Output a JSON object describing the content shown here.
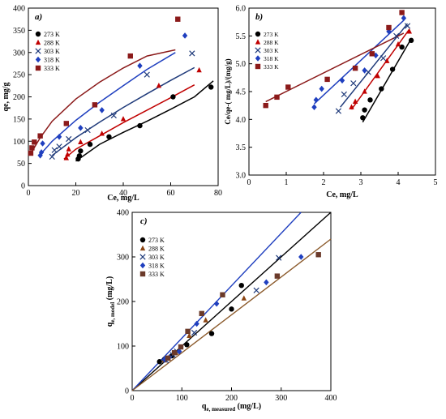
{
  "chart_data": [
    {
      "type": "scatter",
      "panel_label": "a)",
      "xlabel": "Ce, mg/L",
      "ylabel": "qe, mg/g",
      "xlim": [
        0,
        80
      ],
      "ylim": [
        0,
        400
      ],
      "xticks": [
        0,
        20,
        40,
        60,
        80
      ],
      "yticks": [
        0,
        50,
        100,
        150,
        200,
        250,
        300,
        350,
        400
      ],
      "grid": false,
      "legend_position": "top-left",
      "series": [
        {
          "name": "273 K",
          "color": "#000000",
          "marker": "circle",
          "points": [
            [
              21,
              60
            ],
            [
              21.5,
              67
            ],
            [
              22,
              78
            ],
            [
              26,
              93
            ],
            [
              34,
              110
            ],
            [
              47,
              135
            ],
            [
              61,
              200
            ],
            [
              77,
              222
            ]
          ],
          "fit": [
            [
              20,
              55
            ],
            [
              30,
              93
            ],
            [
              40,
              120
            ],
            [
              50,
              145
            ],
            [
              60,
              172
            ],
            [
              70,
              200
            ],
            [
              78,
              236
            ]
          ]
        },
        {
          "name": "288 K",
          "color": "#c00000",
          "marker": "triangle",
          "points": [
            [
              16,
              62
            ],
            [
              16.5,
              70
            ],
            [
              17,
              82
            ],
            [
              22,
              98
            ],
            [
              31,
              117
            ],
            [
              40,
              150
            ],
            [
              55,
              225
            ],
            [
              72,
              260
            ]
          ],
          "fit": [
            [
              15,
              60
            ],
            [
              20,
              82
            ],
            [
              30,
              112
            ],
            [
              40,
              142
            ],
            [
              50,
              170
            ],
            [
              60,
              198
            ],
            [
              70,
              227
            ]
          ]
        },
        {
          "name": "303 K",
          "color": "#1f3a7a",
          "marker": "x",
          "points": [
            [
              10,
              65
            ],
            [
              11,
              80
            ],
            [
              13,
              88
            ],
            [
              17,
              105
            ],
            [
              25,
              125
            ],
            [
              36,
              158
            ],
            [
              50,
              250
            ],
            [
              69,
              298
            ]
          ],
          "fit": [
            [
              10,
              68
            ],
            [
              20,
              108
            ],
            [
              30,
              143
            ],
            [
              40,
              176
            ],
            [
              50,
              207
            ],
            [
              60,
              237
            ],
            [
              70,
              266
            ]
          ]
        },
        {
          "name": "318 K",
          "color": "#1f3fbf",
          "marker": "diamond",
          "points": [
            [
              5,
              68
            ],
            [
              5.5,
              75
            ],
            [
              6,
              95
            ],
            [
              13,
              110
            ],
            [
              22,
              130
            ],
            [
              31,
              170
            ],
            [
              47,
              270
            ],
            [
              66,
              338
            ]
          ],
          "fit": [
            [
              5,
              70
            ],
            [
              10,
              100
            ],
            [
              20,
              147
            ],
            [
              30,
              188
            ],
            [
              40,
              225
            ],
            [
              50,
              262
            ],
            [
              62,
              300
            ]
          ]
        },
        {
          "name": "333 K",
          "color": "#8b1a1a",
          "marker": "square",
          "points": [
            [
              1,
              73
            ],
            [
              1.5,
              85
            ],
            [
              2.5,
              98
            ],
            [
              5,
              112
            ],
            [
              16,
              140
            ],
            [
              28,
              182
            ],
            [
              43,
              292
            ],
            [
              63,
              375
            ]
          ],
          "fit": [
            [
              1,
              72
            ],
            [
              5,
              108
            ],
            [
              10,
              145
            ],
            [
              20,
              195
            ],
            [
              30,
              233
            ],
            [
              40,
              265
            ],
            [
              50,
              292
            ],
            [
              62,
              306
            ]
          ]
        }
      ]
    },
    {
      "type": "scatter",
      "panel_label": "b)",
      "xlabel": "Ce, mg/L",
      "ylabel": "Ce/qe-( mg/L)/(mg/g)",
      "xlim": [
        0,
        5
      ],
      "ylim": [
        3.0,
        6.0
      ],
      "xticks": [
        0,
        1,
        2,
        3,
        4,
        5
      ],
      "yticks": [
        3.0,
        3.5,
        4.0,
        4.5,
        5.0,
        5.5,
        6.0
      ],
      "grid": false,
      "legend_position": "top-left",
      "series": [
        {
          "name": "273 K",
          "color": "#000000",
          "marker": "circle",
          "points": [
            [
              3.05,
              4.03
            ],
            [
              3.1,
              4.17
            ],
            [
              3.25,
              4.35
            ],
            [
              3.55,
              4.55
            ],
            [
              3.85,
              4.9
            ],
            [
              4.1,
              5.3
            ],
            [
              4.35,
              5.42
            ]
          ],
          "fit": [
            [
              3.05,
              3.95
            ],
            [
              4.35,
              5.45
            ]
          ]
        },
        {
          "name": "288 K",
          "color": "#c00000",
          "marker": "triangle",
          "points": [
            [
              2.75,
              4.22
            ],
            [
              2.85,
              4.32
            ],
            [
              3.1,
              4.5
            ],
            [
              3.45,
              4.78
            ],
            [
              3.7,
              5.05
            ],
            [
              4.0,
              5.35
            ],
            [
              4.3,
              5.58
            ]
          ],
          "fit": [
            [
              2.75,
              4.18
            ],
            [
              4.3,
              5.62
            ]
          ]
        },
        {
          "name": "303 K",
          "color": "#1f3a7a",
          "marker": "x",
          "points": [
            [
              2.4,
              4.15
            ],
            [
              2.55,
              4.45
            ],
            [
              2.8,
              4.65
            ],
            [
              3.2,
              4.85
            ],
            [
              3.6,
              5.1
            ],
            [
              3.95,
              5.5
            ],
            [
              4.25,
              5.68
            ]
          ],
          "fit": [
            [
              2.45,
              4.22
            ],
            [
              4.25,
              5.72
            ]
          ]
        },
        {
          "name": "318 K",
          "color": "#1f3fbf",
          "marker": "diamond",
          "points": [
            [
              1.75,
              4.22
            ],
            [
              1.8,
              4.35
            ],
            [
              1.95,
              4.55
            ],
            [
              2.5,
              4.7
            ],
            [
              3.1,
              4.88
            ],
            [
              3.4,
              5.15
            ],
            [
              3.75,
              5.58
            ],
            [
              4.15,
              5.82
            ]
          ],
          "fit": [
            [
              1.75,
              4.28
            ],
            [
              4.15,
              5.78
            ]
          ]
        },
        {
          "name": "333 K",
          "color": "#8b1a1a",
          "marker": "square",
          "points": [
            [
              0.45,
              4.25
            ],
            [
              0.75,
              4.4
            ],
            [
              1.05,
              4.58
            ],
            [
              2.1,
              4.72
            ],
            [
              2.85,
              4.92
            ],
            [
              3.3,
              5.18
            ],
            [
              3.75,
              5.65
            ],
            [
              4.1,
              5.92
            ]
          ],
          "fit": [
            [
              0.45,
              4.32
            ],
            [
              4.15,
              5.55
            ]
          ]
        }
      ]
    },
    {
      "type": "scatter",
      "panel_label": "c)",
      "xlabel_main": "q",
      "xlabel_sub": "e, measured",
      "xlabel_unit": " (mg/L)",
      "ylabel_main": "q",
      "ylabel_sub": "e, model",
      "ylabel_unit": " (mg/L)",
      "xlim": [
        0,
        400
      ],
      "ylim": [
        0,
        400
      ],
      "xticks": [
        0,
        100,
        200,
        300,
        400
      ],
      "yticks": [
        0,
        100,
        200,
        300,
        400
      ],
      "grid": false,
      "legend_position": "top-left",
      "series": [
        {
          "name": "273 K",
          "color": "#000000",
          "marker": "circle",
          "points": [
            [
              55,
              65
            ],
            [
              65,
              70
            ],
            [
              80,
              78
            ],
            [
              110,
              103
            ],
            [
              160,
              128
            ],
            [
              200,
              183
            ],
            [
              220,
              236
            ]
          ]
        },
        {
          "name": "288 K",
          "color": "#8b4513",
          "marker": "triangle",
          "points": [
            [
              65,
              68
            ],
            [
              73,
              72
            ],
            [
              88,
              85
            ],
            [
              115,
              123
            ],
            [
              148,
              158
            ],
            [
              225,
              207
            ]
          ]
        },
        {
          "name": "303 K",
          "color": "#1f3a7a",
          "marker": "x",
          "points": [
            [
              68,
              68
            ],
            [
              82,
              80
            ],
            [
              90,
              88
            ],
            [
              125,
              130
            ],
            [
              250,
              225
            ],
            [
              295,
              298
            ]
          ]
        },
        {
          "name": "318 K",
          "color": "#1f3fbf",
          "marker": "diamond",
          "points": [
            [
              65,
              70
            ],
            [
              75,
              75
            ],
            [
              95,
              88
            ],
            [
              130,
              150
            ],
            [
              170,
              195
            ],
            [
              270,
              243
            ],
            [
              340,
              300
            ]
          ]
        },
        {
          "name": "333 K",
          "color": "#6b3a2a",
          "marker": "square",
          "points": [
            [
              72,
              73
            ],
            [
              85,
              85
            ],
            [
              98,
              98
            ],
            [
              112,
              133
            ],
            [
              140,
              173
            ],
            [
              182,
              215
            ],
            [
              292,
              257
            ],
            [
              375,
              305
            ]
          ]
        }
      ],
      "lines": [
        {
          "color": "#000000",
          "from": [
            0,
            0
          ],
          "to": [
            400,
            400
          ]
        },
        {
          "color": "#1f3fbf",
          "from": [
            0,
            0
          ],
          "to": [
            340,
            400
          ]
        },
        {
          "color": "#8b5a2b",
          "from": [
            0,
            0
          ],
          "to": [
            400,
            340
          ]
        }
      ]
    }
  ]
}
